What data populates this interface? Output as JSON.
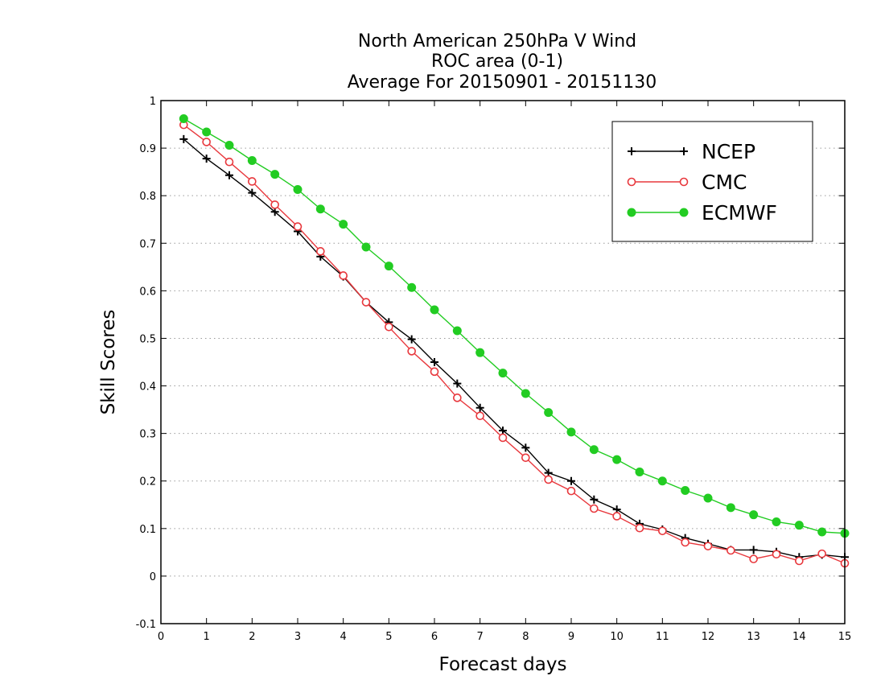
{
  "chart_data": {
    "type": "line",
    "title": [
      "North American 250hPa V Wind",
      "ROC area (0-1)",
      "Average For 20150901 - 20151130"
    ],
    "xlabel": "Forecast days",
    "ylabel": "Skill Scores",
    "xlim": [
      0,
      15
    ],
    "ylim": [
      -0.1,
      1
    ],
    "xticks": [
      0,
      1,
      2,
      3,
      4,
      5,
      6,
      7,
      8,
      9,
      10,
      11,
      12,
      13,
      14,
      15
    ],
    "yticks": [
      -0.1,
      0,
      0.1,
      0.2,
      0.3,
      0.4,
      0.5,
      0.6,
      0.7,
      0.8,
      0.9,
      1
    ],
    "ytick_labels": [
      "-0.1",
      "0",
      "0.1",
      "0.2",
      "0.3",
      "0.4",
      "0.5",
      "0.6",
      "0.7",
      "0.8",
      "0.9",
      "1"
    ],
    "grid": "horizontal-dotted",
    "legend_position": "top-right",
    "x": [
      0.5,
      1,
      1.5,
      2,
      2.5,
      3,
      3.5,
      4,
      4.5,
      5,
      5.5,
      6,
      6.5,
      7,
      7.5,
      8,
      8.5,
      9,
      9.5,
      10,
      10.5,
      11,
      11.5,
      12,
      12.5,
      13,
      13.5,
      14,
      14.5,
      15
    ],
    "series": [
      {
        "name": "NCEP",
        "color": "#000000",
        "marker": "plus",
        "values": [
          0.919,
          0.878,
          0.843,
          0.806,
          0.766,
          0.725,
          0.672,
          0.63,
          0.576,
          0.534,
          0.498,
          0.45,
          0.405,
          0.354,
          0.306,
          0.27,
          0.217,
          0.2,
          0.161,
          0.14,
          0.11,
          0.098,
          0.08,
          0.068,
          0.055,
          0.055,
          0.051,
          0.04,
          0.045,
          0.04
        ]
      },
      {
        "name": "CMC",
        "color": "#e8383d",
        "marker": "open-circle",
        "values": [
          0.949,
          0.913,
          0.871,
          0.83,
          0.781,
          0.735,
          0.683,
          0.632,
          0.576,
          0.524,
          0.473,
          0.43,
          0.375,
          0.337,
          0.291,
          0.249,
          0.203,
          0.179,
          0.142,
          0.126,
          0.101,
          0.095,
          0.071,
          0.063,
          0.054,
          0.036,
          0.046,
          0.032,
          0.047,
          0.027
        ]
      },
      {
        "name": "ECMWF",
        "color": "#22cc22",
        "marker": "filled-circle",
        "values": [
          0.962,
          0.934,
          0.906,
          0.874,
          0.845,
          0.813,
          0.772,
          0.74,
          0.692,
          0.652,
          0.607,
          0.56,
          0.516,
          0.47,
          0.427,
          0.384,
          0.344,
          0.303,
          0.266,
          0.245,
          0.219,
          0.2,
          0.18,
          0.164,
          0.144,
          0.129,
          0.114,
          0.107,
          0.093,
          0.09
        ]
      }
    ]
  }
}
